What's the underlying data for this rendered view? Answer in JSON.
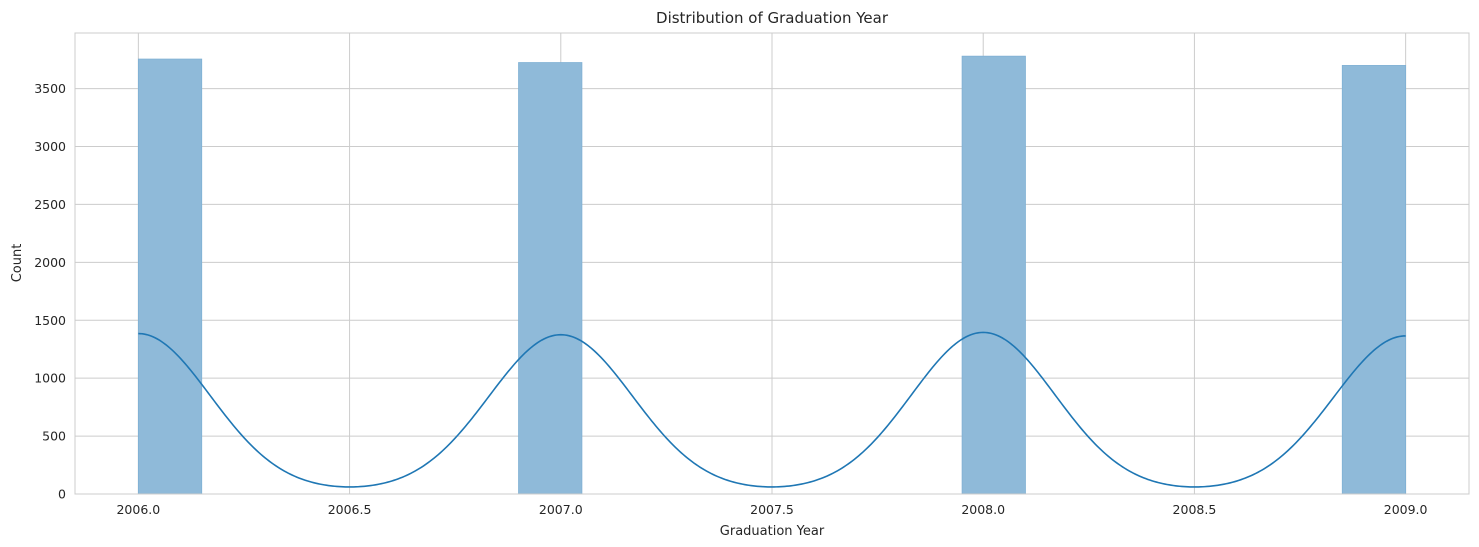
{
  "chart_data": {
    "type": "bar",
    "title": "Distribution of Graduation Year",
    "xlabel": "Graduation Year",
    "ylabel": "Count",
    "xlim": [
      1985.85,
      2009.15
    ],
    "ylim": [
      0,
      3980
    ],
    "x_ticks": [
      "2006.0",
      "2006.5",
      "2007.0",
      "2007.5",
      "2008.0",
      "2008.5",
      "2009.0"
    ],
    "x_tick_values": [
      2006.0,
      2006.5,
      2007.0,
      2007.5,
      2008.0,
      2008.5,
      2009.0
    ],
    "y_ticks": [
      "0",
      "500",
      "1000",
      "1500",
      "2000",
      "2500",
      "3000",
      "3500"
    ],
    "y_tick_values": [
      0,
      500,
      1000,
      1500,
      2000,
      2500,
      3000,
      3500
    ],
    "grid": true,
    "bars": [
      {
        "x0": 2006.0,
        "x1": 2006.15,
        "count": 3755
      },
      {
        "x0": 2006.9,
        "x1": 2007.05,
        "count": 3725
      },
      {
        "x0": 2007.95,
        "x1": 2008.1,
        "count": 3780
      },
      {
        "x0": 2008.85,
        "x1": 2009.0,
        "count": 3700
      }
    ],
    "kde": {
      "peaks": [
        {
          "x": 2006.0,
          "y": 1385
        },
        {
          "x": 2007.0,
          "y": 1375
        },
        {
          "x": 2008.0,
          "y": 1395
        },
        {
          "x": 2009.0,
          "y": 1365
        }
      ],
      "baseline": 25
    },
    "colors": {
      "bar_fill": "#8fbad9",
      "bar_edge": "#7fb0d4",
      "kde_line": "#1f77b4",
      "grid": "#cccccc",
      "axes_edge": "#cccccc",
      "text": "#262626"
    }
  }
}
